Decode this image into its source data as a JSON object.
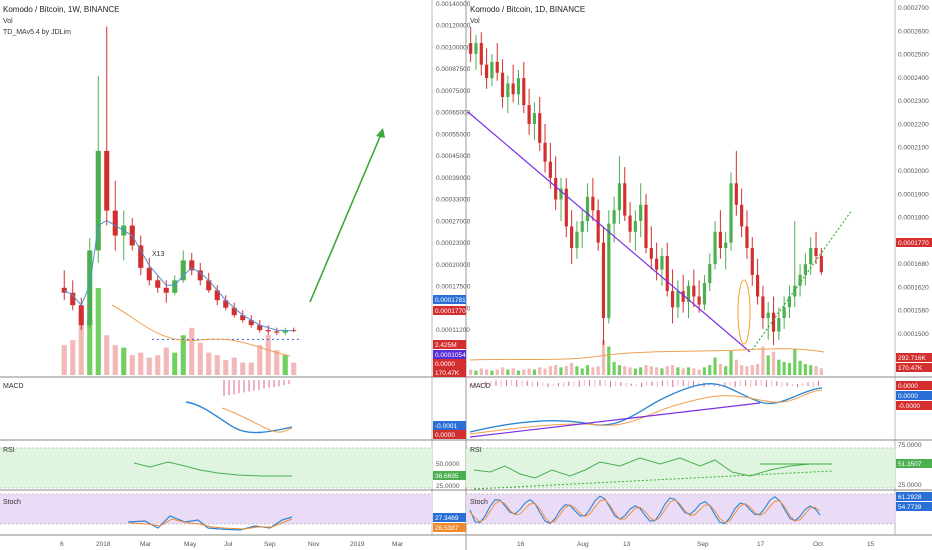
{
  "colors": {
    "up": "#4caf50",
    "down": "#d32f2f",
    "vol_up": "#6fcf5f",
    "vol_down": "#f2b7b7",
    "ma": "#4a90d9",
    "ma_orange": "#f0a050",
    "trend": "#7b2ee6",
    "arrow": "#3aa83a",
    "dotted_green": "#38b038",
    "rsi_bg": "#dff5df",
    "stoch_bg": "#eadbf7",
    "rsi_line": "#4caf50",
    "stoch_blue": "#2a86d4",
    "stoch_orange": "#f08a30",
    "label_blue": "#2a6fd6",
    "label_red": "#d32f2f",
    "label_violet": "#5a2ed6"
  },
  "left": {
    "title": "Komodo / Bitcoin, 1W, BINANCE",
    "vol_label": "Vol",
    "indicator_label": "TD_MAv5.4 by JDLim",
    "annotation": "X13",
    "macd_label": "MACD",
    "rsi_label": "RSI",
    "stoch_label": "Stoch",
    "price_ticks": [
      "0.00140000",
      "0.00120000",
      "0.00100000",
      "0.00087500",
      "0.00075000",
      "0.00065000",
      "0.00055000",
      "0.00045000",
      "0.00039000",
      "0.00033000",
      "0.00027000",
      "0.00023000",
      "0.00020000",
      "0.00017500",
      "0.00013800",
      "0.00011200"
    ],
    "price_badges": [
      {
        "text": "0.0001781",
        "kind": "blue"
      },
      {
        "text": "0.0001770",
        "kind": "red"
      }
    ],
    "vol_badges": [
      {
        "text": "2.425M",
        "kind": "red"
      },
      {
        "text": "0.0001054",
        "kind": "violet"
      },
      {
        "text": "0.0000",
        "kind": "red"
      },
      {
        "text": "170.47K",
        "kind": "red"
      }
    ],
    "macd_badges": [
      {
        "text": "-0.0001",
        "kind": "blue"
      },
      {
        "text": "0.0000",
        "kind": "red"
      }
    ],
    "rsi_badges": [
      {
        "text": "38.6695",
        "kind": "green"
      }
    ],
    "rsi_ticks": [
      "50.0000",
      "25.0000"
    ],
    "stoch_badges": [
      {
        "text": "27.3469",
        "kind": "blue"
      },
      {
        "text": "26.5387",
        "kind": "orange"
      }
    ],
    "x_ticks": [
      "6",
      "2018",
      "Mar",
      "May",
      "Jul",
      "Sep",
      "Nov",
      "2019",
      "Mar"
    ]
  },
  "right": {
    "title": "Komodo / Bitcoin, 1D, BINANCE",
    "vol_label": "Vol",
    "macd_label": "MACD",
    "rsi_label": "RSI",
    "stoch_label": "Stoch",
    "price_ticks": [
      "0.0002700",
      "0.0002600",
      "0.0002500",
      "0.0002400",
      "0.0002300",
      "0.0002200",
      "0.0002100",
      "0.0002000",
      "0.0001900",
      "0.0001800",
      "0.0001740",
      "0.0001680",
      "0.0001620",
      "0.0001560",
      "0.0001500"
    ],
    "price_badges": [
      {
        "text": "0.0001770",
        "kind": "red"
      }
    ],
    "vol_badges": [
      {
        "text": "292.716K",
        "kind": "red"
      },
      {
        "text": "170.47K",
        "kind": "red"
      }
    ],
    "macd_badges": [
      {
        "text": "0.0000",
        "kind": "red"
      },
      {
        "text": "0.0000",
        "kind": "blue"
      },
      {
        "text": "-0.0000",
        "kind": "red"
      }
    ],
    "rsi_badges": [
      {
        "text": "51.3507",
        "kind": "green"
      }
    ],
    "rsi_ticks": [
      "75.0000",
      "50.0000",
      "25.0000"
    ],
    "stoch_badges": [
      {
        "text": "61.2928",
        "kind": "blue"
      },
      {
        "text": "54.7739",
        "kind": "blue"
      }
    ],
    "x_ticks": [
      "16",
      "Aug",
      "13",
      "Sep",
      "17",
      "Oct",
      "15"
    ]
  },
  "chart_data": [
    {
      "type": "candlestick",
      "title": "Komodo / Bitcoin, 1W, BINANCE",
      "candles": [
        {
          "o": 0.00035,
          "h": 0.00042,
          "l": 0.0003,
          "c": 0.00033
        },
        {
          "o": 0.00033,
          "h": 0.00038,
          "l": 0.00026,
          "c": 0.00028
        },
        {
          "o": 0.00028,
          "h": 0.00031,
          "l": 0.00018,
          "c": 0.0002
        },
        {
          "o": 0.0002,
          "h": 0.00055,
          "l": 0.00019,
          "c": 0.0005
        },
        {
          "o": 0.0005,
          "h": 0.0012,
          "l": 0.00045,
          "c": 0.0009
        },
        {
          "o": 0.0009,
          "h": 0.0014,
          "l": 0.0006,
          "c": 0.00066
        },
        {
          "o": 0.00066,
          "h": 0.00078,
          "l": 0.0005,
          "c": 0.00056
        },
        {
          "o": 0.00056,
          "h": 0.00066,
          "l": 0.00046,
          "c": 0.0006
        },
        {
          "o": 0.0006,
          "h": 0.00063,
          "l": 0.0005,
          "c": 0.00052
        },
        {
          "o": 0.00052,
          "h": 0.00056,
          "l": 0.0004,
          "c": 0.00043
        },
        {
          "o": 0.00043,
          "h": 0.00047,
          "l": 0.00036,
          "c": 0.00038
        },
        {
          "o": 0.00038,
          "h": 0.0004,
          "l": 0.00033,
          "c": 0.00035
        },
        {
          "o": 0.00035,
          "h": 0.00038,
          "l": 0.00029,
          "c": 0.00033
        },
        {
          "o": 0.00033,
          "h": 0.0004,
          "l": 0.00032,
          "c": 0.00038
        },
        {
          "o": 0.00038,
          "h": 0.0005,
          "l": 0.00037,
          "c": 0.00046
        },
        {
          "o": 0.00046,
          "h": 0.00049,
          "l": 0.0004,
          "c": 0.00042
        },
        {
          "o": 0.00042,
          "h": 0.00045,
          "l": 0.00036,
          "c": 0.00038
        },
        {
          "o": 0.00038,
          "h": 0.00041,
          "l": 0.00033,
          "c": 0.00034
        },
        {
          "o": 0.00034,
          "h": 0.00036,
          "l": 0.00028,
          "c": 0.0003
        },
        {
          "o": 0.0003,
          "h": 0.00032,
          "l": 0.00026,
          "c": 0.00027
        },
        {
          "o": 0.00027,
          "h": 0.00029,
          "l": 0.00023,
          "c": 0.00024
        },
        {
          "o": 0.00024,
          "h": 0.00026,
          "l": 0.00021,
          "c": 0.00022
        },
        {
          "o": 0.00022,
          "h": 0.00024,
          "l": 0.00019,
          "c": 0.0002
        },
        {
          "o": 0.0002,
          "h": 0.00022,
          "l": 0.00017,
          "c": 0.00018
        },
        {
          "o": 0.00018,
          "h": 0.0002,
          "l": 0.00016,
          "c": 0.000175
        },
        {
          "o": 0.000175,
          "h": 0.00019,
          "l": 0.00016,
          "c": 0.00017
        },
        {
          "o": 0.00017,
          "h": 0.00019,
          "l": 0.00016,
          "c": 0.00018
        },
        {
          "o": 0.00018,
          "h": 0.00019,
          "l": 0.000172,
          "c": 0.000177
        }
      ],
      "volume": [
        1.2,
        1.4,
        2.5,
        2.2,
        3.5,
        1.6,
        1.2,
        1.1,
        0.8,
        0.9,
        0.7,
        0.8,
        1.1,
        0.9,
        1.6,
        1.9,
        1.3,
        0.9,
        0.8,
        0.6,
        0.7,
        0.5,
        0.5,
        1.2,
        1.6,
        1.0,
        0.8,
        0.5
      ],
      "ma": [
        0.00034,
        0.00032,
        0.00028,
        0.00036,
        0.0006,
        0.00062,
        0.0006,
        0.00058,
        0.00056,
        0.0005,
        0.00044,
        0.0004,
        0.00036,
        0.00036,
        0.0004,
        0.00043,
        0.00041,
        0.00038,
        0.00034,
        0.0003,
        0.00027,
        0.00024,
        0.00022,
        0.0002,
        0.00019,
        0.00018,
        0.000178,
        0.000178
      ],
      "support_level": 0.000175
    },
    {
      "type": "candlestick",
      "title": "Komodo / Bitcoin, 1D, BINANCE",
      "candles": [
        {
          "o": 0.000262,
          "h": 0.000268,
          "l": 0.000255,
          "c": 0.000258
        },
        {
          "o": 0.000258,
          "h": 0.000265,
          "l": 0.000252,
          "c": 0.000262
        },
        {
          "o": 0.000262,
          "h": 0.000266,
          "l": 0.00025,
          "c": 0.000254
        },
        {
          "o": 0.000254,
          "h": 0.00026,
          "l": 0.000245,
          "c": 0.000249
        },
        {
          "o": 0.000249,
          "h": 0.000258,
          "l": 0.000246,
          "c": 0.000255
        },
        {
          "o": 0.000255,
          "h": 0.000262,
          "l": 0.000248,
          "c": 0.000251
        },
        {
          "o": 0.000251,
          "h": 0.000256,
          "l": 0.000238,
          "c": 0.000242
        },
        {
          "o": 0.000242,
          "h": 0.00025,
          "l": 0.000236,
          "c": 0.000247
        },
        {
          "o": 0.000247,
          "h": 0.000254,
          "l": 0.00024,
          "c": 0.000243
        },
        {
          "o": 0.000243,
          "h": 0.000252,
          "l": 0.000239,
          "c": 0.000249
        },
        {
          "o": 0.000249,
          "h": 0.000255,
          "l": 0.000236,
          "c": 0.000239
        },
        {
          "o": 0.000239,
          "h": 0.000245,
          "l": 0.000228,
          "c": 0.000232
        },
        {
          "o": 0.000232,
          "h": 0.00024,
          "l": 0.000226,
          "c": 0.000236
        },
        {
          "o": 0.000236,
          "h": 0.000242,
          "l": 0.000222,
          "c": 0.000225
        },
        {
          "o": 0.000225,
          "h": 0.000232,
          "l": 0.000214,
          "c": 0.000218
        },
        {
          "o": 0.000218,
          "h": 0.000225,
          "l": 0.000208,
          "c": 0.000212
        },
        {
          "o": 0.000212,
          "h": 0.00022,
          "l": 0.0002,
          "c": 0.000204
        },
        {
          "o": 0.000204,
          "h": 0.000212,
          "l": 0.000196,
          "c": 0.000208
        },
        {
          "o": 0.000208,
          "h": 0.000212,
          "l": 0.00019,
          "c": 0.000194
        },
        {
          "o": 0.000194,
          "h": 0.0002,
          "l": 0.00018,
          "c": 0.000186
        },
        {
          "o": 0.000186,
          "h": 0.000196,
          "l": 0.000182,
          "c": 0.000192
        },
        {
          "o": 0.000192,
          "h": 0.0002,
          "l": 0.000186,
          "c": 0.000196
        },
        {
          "o": 0.000196,
          "h": 0.00021,
          "l": 0.000192,
          "c": 0.000205
        },
        {
          "o": 0.000205,
          "h": 0.000212,
          "l": 0.000196,
          "c": 0.0002
        },
        {
          "o": 0.0002,
          "h": 0.000204,
          "l": 0.000185,
          "c": 0.000188
        },
        {
          "o": 0.000188,
          "h": 0.000194,
          "l": 0.00015,
          "c": 0.00016
        },
        {
          "o": 0.00016,
          "h": 0.0002,
          "l": 0.000158,
          "c": 0.000195
        },
        {
          "o": 0.000195,
          "h": 0.000205,
          "l": 0.000188,
          "c": 0.0002
        },
        {
          "o": 0.0002,
          "h": 0.00022,
          "l": 0.000195,
          "c": 0.00021
        },
        {
          "o": 0.00021,
          "h": 0.000216,
          "l": 0.000196,
          "c": 0.000198
        },
        {
          "o": 0.000198,
          "h": 0.000203,
          "l": 0.000188,
          "c": 0.000192
        },
        {
          "o": 0.000192,
          "h": 0.0002,
          "l": 0.000185,
          "c": 0.000196
        },
        {
          "o": 0.000196,
          "h": 0.00021,
          "l": 0.00019,
          "c": 0.000202
        },
        {
          "o": 0.000202,
          "h": 0.000206,
          "l": 0.000184,
          "c": 0.000186
        },
        {
          "o": 0.000186,
          "h": 0.000194,
          "l": 0.000178,
          "c": 0.000182
        },
        {
          "o": 0.000182,
          "h": 0.000188,
          "l": 0.000174,
          "c": 0.000178
        },
        {
          "o": 0.000178,
          "h": 0.000186,
          "l": 0.000172,
          "c": 0.000183
        },
        {
          "o": 0.000183,
          "h": 0.000188,
          "l": 0.000168,
          "c": 0.00017
        },
        {
          "o": 0.00017,
          "h": 0.000178,
          "l": 0.000158,
          "c": 0.000164
        },
        {
          "o": 0.000164,
          "h": 0.000174,
          "l": 0.00016,
          "c": 0.00017
        },
        {
          "o": 0.00017,
          "h": 0.000176,
          "l": 0.000162,
          "c": 0.000166
        },
        {
          "o": 0.000166,
          "h": 0.000174,
          "l": 0.00016,
          "c": 0.000172
        },
        {
          "o": 0.000172,
          "h": 0.000178,
          "l": 0.000164,
          "c": 0.000168
        },
        {
          "o": 0.000168,
          "h": 0.000174,
          "l": 0.000162,
          "c": 0.000165
        },
        {
          "o": 0.000165,
          "h": 0.000176,
          "l": 0.000163,
          "c": 0.000173
        },
        {
          "o": 0.000173,
          "h": 0.000184,
          "l": 0.00017,
          "c": 0.00018
        },
        {
          "o": 0.00018,
          "h": 0.000196,
          "l": 0.000178,
          "c": 0.000192
        },
        {
          "o": 0.000192,
          "h": 0.0002,
          "l": 0.000182,
          "c": 0.000186
        },
        {
          "o": 0.000186,
          "h": 0.000192,
          "l": 0.000178,
          "c": 0.000188
        },
        {
          "o": 0.000188,
          "h": 0.000214,
          "l": 0.000185,
          "c": 0.00021
        },
        {
          "o": 0.00021,
          "h": 0.000222,
          "l": 0.000198,
          "c": 0.000202
        },
        {
          "o": 0.000202,
          "h": 0.000208,
          "l": 0.00019,
          "c": 0.000194
        },
        {
          "o": 0.000194,
          "h": 0.0002,
          "l": 0.000182,
          "c": 0.000186
        },
        {
          "o": 0.000186,
          "h": 0.00019,
          "l": 0.000172,
          "c": 0.000176
        },
        {
          "o": 0.000176,
          "h": 0.000182,
          "l": 0.000165,
          "c": 0.000168
        },
        {
          "o": 0.000168,
          "h": 0.000172,
          "l": 0.000156,
          "c": 0.00016
        },
        {
          "o": 0.00016,
          "h": 0.000166,
          "l": 0.000152,
          "c": 0.000162
        },
        {
          "o": 0.000162,
          "h": 0.000168,
          "l": 0.00015,
          "c": 0.000155
        },
        {
          "o": 0.000155,
          "h": 0.000164,
          "l": 0.000152,
          "c": 0.00016
        },
        {
          "o": 0.00016,
          "h": 0.000168,
          "l": 0.000156,
          "c": 0.000164
        },
        {
          "o": 0.000164,
          "h": 0.000172,
          "l": 0.00016,
          "c": 0.000168
        },
        {
          "o": 0.000168,
          "h": 0.000196,
          "l": 0.000164,
          "c": 0.000172
        },
        {
          "o": 0.000172,
          "h": 0.00018,
          "l": 0.000168,
          "c": 0.000176
        },
        {
          "o": 0.000176,
          "h": 0.000184,
          "l": 0.000172,
          "c": 0.00018
        },
        {
          "o": 0.00018,
          "h": 0.00019,
          "l": 0.000176,
          "c": 0.000186
        },
        {
          "o": 0.000186,
          "h": 0.000192,
          "l": 0.00018,
          "c": 0.000183
        },
        {
          "o": 0.000183,
          "h": 0.000186,
          "l": 0.000176,
          "c": 0.000177
        }
      ],
      "volume": [
        0.5,
        0.4,
        0.6,
        0.5,
        0.4,
        0.5,
        0.7,
        0.5,
        0.6,
        0.4,
        0.5,
        0.6,
        0.5,
        0.7,
        0.6,
        0.8,
        0.9,
        0.7,
        0.8,
        1.1,
        0.8,
        0.6,
        0.9,
        0.7,
        0.8,
        3.2,
        2.6,
        1.2,
        0.9,
        0.8,
        0.7,
        0.6,
        0.7,
        0.9,
        0.8,
        0.7,
        0.6,
        0.8,
        0.9,
        0.7,
        0.6,
        0.7,
        0.6,
        0.5,
        0.7,
        0.9,
        1.6,
        1.0,
        0.8,
        2.2,
        1.4,
        0.9,
        0.8,
        0.9,
        1.0,
        2.6,
        1.8,
        2.1,
        1.4,
        1.2,
        1.1,
        2.4,
        1.3,
        1.0,
        0.9,
        0.8,
        0.6
      ],
      "downtrend_line": {
        "from": 0.00024,
        "to": 0.00015
      },
      "uptrend_line": {
        "from": 0.00015,
        "to": 0.00019
      }
    }
  ]
}
